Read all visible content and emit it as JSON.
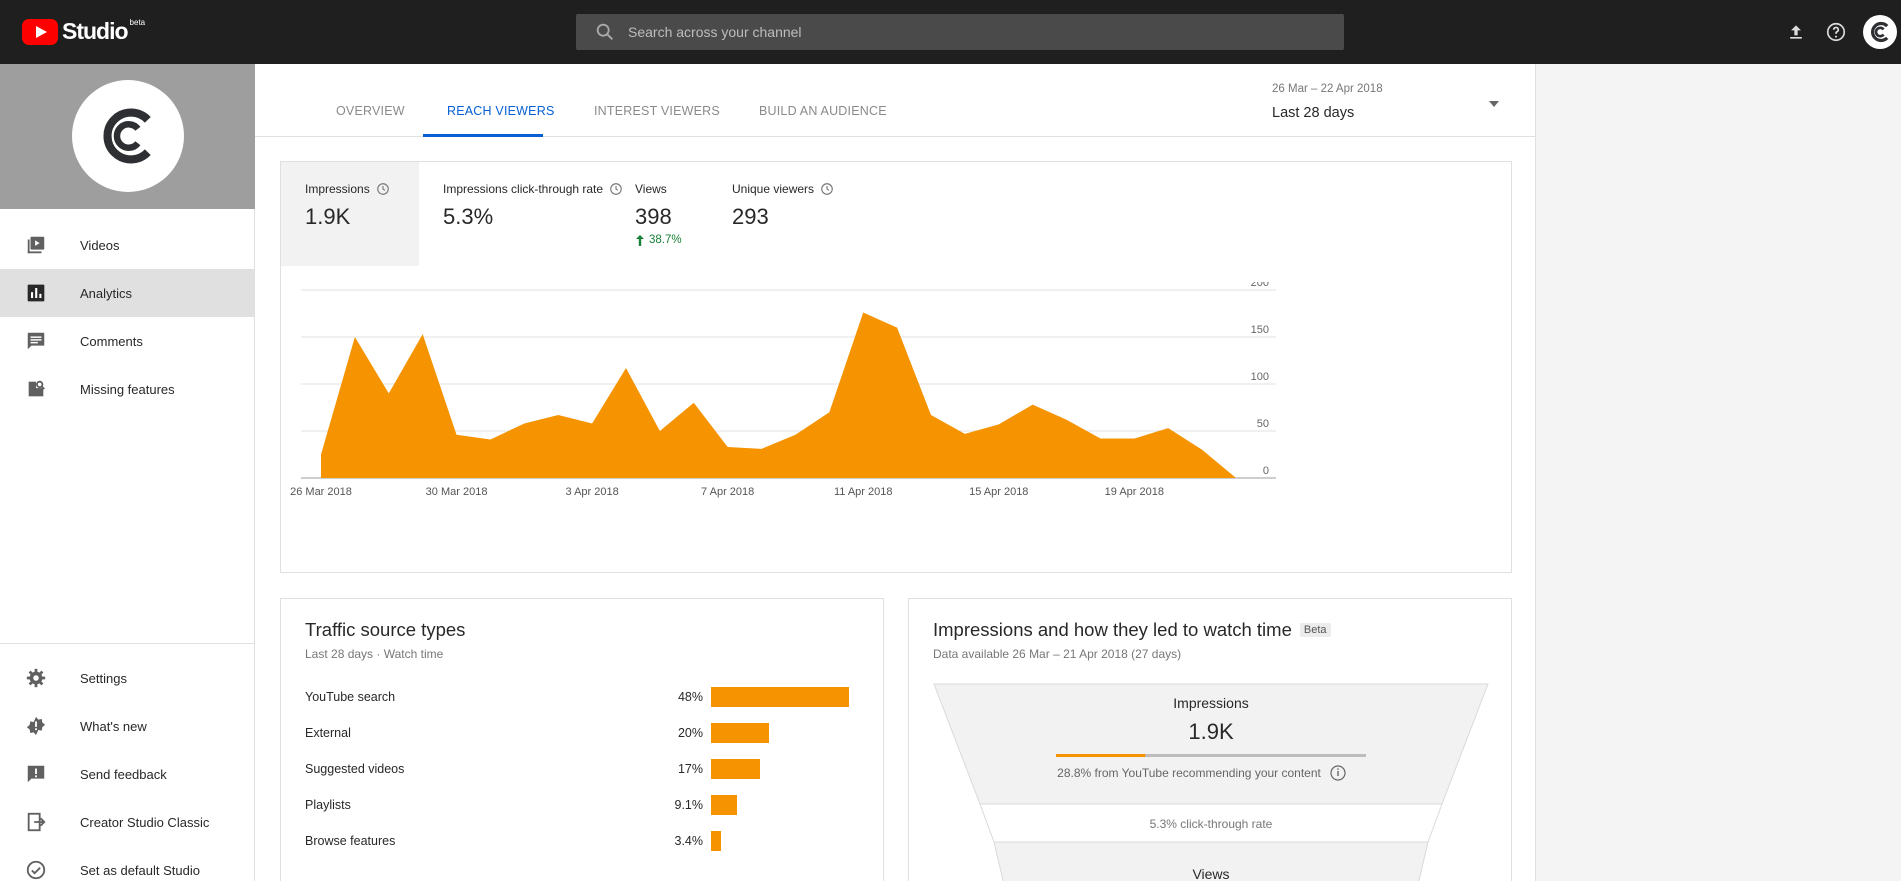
{
  "app": {
    "name": "Studio",
    "badge": "beta"
  },
  "search": {
    "placeholder": "Search across your channel"
  },
  "topbar": {
    "icons": [
      "upload-icon",
      "help-icon",
      "account-avatar"
    ]
  },
  "sidebar": {
    "items": [
      {
        "label": "Videos",
        "icon": "video-library-icon",
        "active": false
      },
      {
        "label": "Analytics",
        "icon": "analytics-icon",
        "active": true
      },
      {
        "label": "Comments",
        "icon": "comments-icon",
        "active": false
      },
      {
        "label": "Missing features",
        "icon": "missing-features-icon",
        "active": false
      }
    ],
    "bottom_items": [
      {
        "label": "Settings",
        "icon": "gear-icon"
      },
      {
        "label": "What's new",
        "icon": "whats-new-icon"
      },
      {
        "label": "Send feedback",
        "icon": "feedback-icon"
      },
      {
        "label": "Creator Studio Classic",
        "icon": "classic-icon"
      },
      {
        "label": "Set as default Studio",
        "icon": "check-circle-icon"
      }
    ]
  },
  "tabs": [
    {
      "label": "OVERVIEW",
      "active": false
    },
    {
      "label": "REACH VIEWERS",
      "active": true
    },
    {
      "label": "INTEREST VIEWERS",
      "active": false
    },
    {
      "label": "BUILD AN AUDIENCE",
      "active": false
    }
  ],
  "date_picker": {
    "range": "26 Mar – 22 Apr 2018",
    "label": "Last 28 days"
  },
  "metrics": [
    {
      "label": "Impressions",
      "value": "1.9K",
      "delta": "",
      "selected": true
    },
    {
      "label": "Impressions click-through rate",
      "value": "5.3%",
      "delta": "",
      "selected": false
    },
    {
      "label": "Views",
      "value": "398",
      "delta": "38.7%",
      "selected": false
    },
    {
      "label": "Unique viewers",
      "value": "293",
      "delta": "",
      "selected": false
    }
  ],
  "chart_data": {
    "type": "area",
    "x": [
      "26 Mar 2018",
      "27 Mar",
      "28 Mar",
      "29 Mar",
      "30 Mar 2018",
      "31 Mar",
      "1 Apr",
      "2 Apr",
      "3 Apr 2018",
      "4 Apr",
      "5 Apr",
      "6 Apr",
      "7 Apr 2018",
      "8 Apr",
      "9 Apr",
      "10 Apr",
      "11 Apr 2018",
      "12 Apr",
      "13 Apr",
      "14 Apr",
      "15 Apr 2018",
      "16 Apr",
      "17 Apr",
      "18 Apr",
      "19 Apr 2018",
      "20 Apr",
      "21 Apr",
      "22 Apr"
    ],
    "series": [
      {
        "values": [
          25,
          150,
          90,
          153,
          46,
          41,
          58,
          67,
          58,
          117,
          50,
          80,
          33,
          31,
          46,
          70,
          176,
          160,
          67,
          47,
          57,
          78,
          62,
          42,
          42,
          53,
          30,
          0
        ]
      }
    ],
    "x_tick_labels": [
      "26 Mar 2018",
      "30 Mar 2018",
      "3 Apr 2018",
      "7 Apr 2018",
      "11 Apr 2018",
      "15 Apr 2018",
      "19 Apr 2018"
    ],
    "x_tick_indices": [
      0,
      4,
      8,
      12,
      16,
      20,
      24
    ],
    "y_ticks": [
      0,
      50,
      100,
      150,
      200
    ],
    "ylim": [
      0,
      200
    ],
    "grid": true,
    "color": "#f59400"
  },
  "traffic": {
    "title": "Traffic source types",
    "subtitle": "Last 28 days · Watch time",
    "rows": [
      {
        "name": "YouTube search",
        "pct_label": "48%",
        "share": 48
      },
      {
        "name": "External",
        "pct_label": "20%",
        "share": 20
      },
      {
        "name": "Suggested videos",
        "pct_label": "17%",
        "share": 17
      },
      {
        "name": "Playlists",
        "pct_label": "9.1%",
        "share": 9.1
      },
      {
        "name": "Browse features",
        "pct_label": "3.4%",
        "share": 3.4
      }
    ],
    "max_share": 48
  },
  "funnel": {
    "title": "Impressions and how they led to watch time",
    "badge": "Beta",
    "subtitle": "Data available 26 Mar – 21 Apr 2018 (27 days)",
    "impressions_label": "Impressions",
    "impressions_value": "1.9K",
    "recommend_text": "28.8% from YouTube recommending your content",
    "recommend_fraction": 0.288,
    "ctr_text": "5.3% click-through rate",
    "views_label": "Views"
  },
  "colors": {
    "accent": "#065fd4",
    "chart": "#f59400",
    "positive": "#188038"
  }
}
